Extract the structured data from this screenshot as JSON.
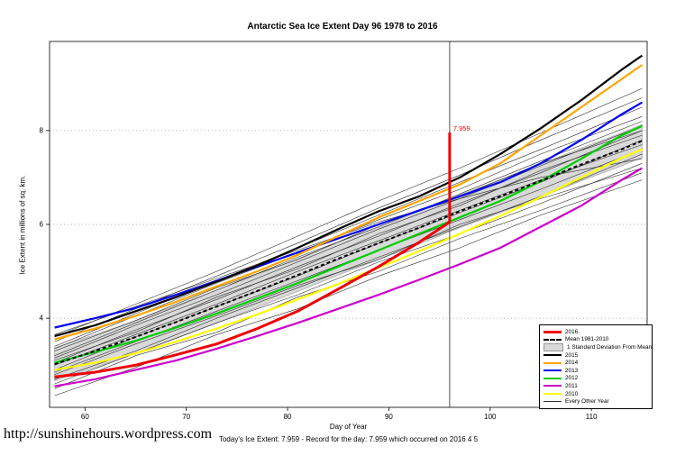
{
  "caption": "Today's Ice Extent: 7.959  - Record for the day: 7.959 which occurred on 2016 4 5",
  "url_text": "http://sunshinehours.wordpress.com",
  "chart_data": {
    "type": "line",
    "title": "Antarctic Sea Ice Extent Day 96 1978 to 2016",
    "xlabel": "Day of Year",
    "ylabel": "Ice Extent in millions of sq. km.",
    "xlim": [
      56.5,
      115.5
    ],
    "ylim": [
      2.1,
      9.9
    ],
    "xticks": [
      60,
      70,
      80,
      90,
      100,
      110
    ],
    "yticks": [
      4,
      6,
      8
    ],
    "vline_x": 96,
    "annotation": {
      "text": "7.959",
      "x": 96,
      "y": 7.959,
      "color": "#EE0000"
    },
    "band": {
      "label": "1 Standard Deviation From Mean",
      "mean_series": "Mean 1981-2010",
      "sd": 0.35,
      "color": "#D9D9D9"
    },
    "x_main": [
      57,
      61,
      65,
      69,
      73,
      77,
      81,
      85,
      89,
      93,
      97,
      101,
      105,
      109,
      113,
      115
    ],
    "series": [
      {
        "name": "2010",
        "color": "#FFFF00",
        "width": 2.2,
        "dash": null,
        "x": [
          57,
          61,
          65,
          69,
          73,
          77,
          81,
          85,
          89,
          93,
          97,
          101,
          105,
          109,
          113,
          115
        ],
        "values": [
          2.9,
          3.05,
          3.25,
          3.5,
          3.78,
          4.08,
          4.4,
          4.73,
          5.08,
          5.43,
          5.8,
          6.18,
          6.58,
          7.0,
          7.42,
          7.6
        ]
      },
      {
        "name": "2011",
        "color": "#CC00CC",
        "width": 2.2,
        "dash": null,
        "x": [
          57,
          61,
          65,
          69,
          73,
          77,
          81,
          85,
          89,
          93,
          97,
          101,
          105,
          109,
          113,
          115
        ],
        "values": [
          2.55,
          2.7,
          2.9,
          3.1,
          3.35,
          3.62,
          3.9,
          4.2,
          4.5,
          4.82,
          5.15,
          5.5,
          5.95,
          6.4,
          6.95,
          7.2
        ]
      },
      {
        "name": "2012",
        "color": "#00CC00",
        "width": 2.2,
        "dash": null,
        "x": [
          57,
          61,
          65,
          69,
          73,
          77,
          81,
          85,
          89,
          93,
          97,
          101,
          105,
          109,
          113,
          115
        ],
        "values": [
          3.05,
          3.28,
          3.52,
          3.8,
          4.1,
          4.42,
          4.75,
          5.1,
          5.45,
          5.8,
          6.15,
          6.5,
          6.92,
          7.4,
          7.9,
          8.1
        ]
      },
      {
        "name": "2013",
        "color": "#0000EE",
        "width": 2.2,
        "dash": null,
        "x": [
          57,
          61,
          65,
          69,
          73,
          77,
          81,
          85,
          89,
          93,
          97,
          101,
          105,
          109,
          113,
          115
        ],
        "values": [
          3.8,
          4.0,
          4.22,
          4.5,
          4.8,
          5.1,
          5.4,
          5.7,
          6.0,
          6.3,
          6.6,
          6.9,
          7.3,
          7.8,
          8.35,
          8.6
        ]
      },
      {
        "name": "2014",
        "color": "#FFA500",
        "width": 2.2,
        "dash": null,
        "x": [
          57,
          61,
          65,
          69,
          73,
          77,
          81,
          85,
          89,
          93,
          97,
          101,
          105,
          109,
          113,
          115
        ],
        "values": [
          3.55,
          3.78,
          4.05,
          4.35,
          4.68,
          5.0,
          5.35,
          5.75,
          6.15,
          6.5,
          6.85,
          7.3,
          7.9,
          8.5,
          9.1,
          9.4
        ]
      },
      {
        "name": "2015",
        "color": "#000000",
        "width": 2.2,
        "dash": null,
        "x": [
          57,
          61,
          65,
          69,
          73,
          77,
          81,
          85,
          89,
          93,
          97,
          101,
          105,
          109,
          113,
          115
        ],
        "values": [
          3.62,
          3.85,
          4.15,
          4.45,
          4.78,
          5.12,
          5.5,
          5.9,
          6.28,
          6.6,
          7.0,
          7.5,
          8.05,
          8.65,
          9.3,
          9.6
        ]
      },
      {
        "name": "Mean 1981-2010",
        "color": "#000000",
        "width": 2,
        "dash": "4 3",
        "x": [
          57,
          61,
          65,
          69,
          73,
          77,
          81,
          85,
          89,
          93,
          97,
          101,
          105,
          109,
          113,
          115
        ],
        "values": [
          3.02,
          3.3,
          3.6,
          3.92,
          4.25,
          4.58,
          4.92,
          5.27,
          5.6,
          5.93,
          6.28,
          6.6,
          6.93,
          7.28,
          7.6,
          7.78
        ]
      },
      {
        "name": "2016",
        "color": "#EE0000",
        "width": 3,
        "dash": null,
        "x": [
          57,
          61,
          65,
          69,
          73,
          77,
          81,
          85,
          89,
          93,
          96,
          96
        ],
        "values": [
          2.75,
          2.85,
          3.0,
          3.22,
          3.45,
          3.78,
          4.15,
          4.62,
          5.1,
          5.62,
          6.05,
          7.959
        ]
      }
    ],
    "other_years": {
      "label": "Every Other Year",
      "color": "#2b2b2b",
      "width": 0.6,
      "x": [
        57,
        65,
        73,
        81,
        89,
        97,
        105,
        115
      ],
      "lines": [
        [
          2.35,
          2.95,
          3.65,
          4.2,
          4.9,
          5.5,
          6.2,
          6.95
        ],
        [
          2.5,
          3.2,
          3.7,
          4.45,
          5.0,
          5.7,
          6.3,
          7.1
        ],
        [
          2.6,
          3.25,
          3.9,
          4.5,
          5.2,
          5.8,
          6.45,
          7.3
        ],
        [
          2.7,
          3.3,
          4.0,
          4.65,
          5.3,
          5.95,
          6.6,
          7.5
        ],
        [
          2.8,
          3.45,
          4.05,
          4.7,
          5.25,
          6.0,
          6.55,
          7.2
        ],
        [
          2.85,
          3.5,
          4.15,
          4.8,
          5.45,
          6.1,
          6.75,
          7.6
        ],
        [
          2.9,
          3.6,
          4.25,
          4.9,
          5.6,
          6.25,
          6.9,
          7.8
        ],
        [
          3.0,
          3.65,
          4.3,
          5.0,
          5.65,
          6.3,
          6.95,
          7.7
        ],
        [
          3.05,
          3.75,
          4.4,
          5.1,
          5.75,
          6.45,
          7.1,
          8.0
        ],
        [
          3.1,
          3.7,
          4.45,
          5.05,
          5.8,
          6.4,
          7.15,
          7.9
        ],
        [
          3.15,
          3.85,
          4.5,
          5.2,
          5.9,
          6.55,
          7.25,
          8.1
        ],
        [
          3.2,
          3.9,
          4.6,
          5.3,
          5.95,
          6.65,
          7.35,
          8.2
        ],
        [
          3.3,
          3.95,
          4.65,
          5.25,
          6.0,
          6.6,
          7.3,
          8.0
        ],
        [
          3.35,
          4.05,
          4.75,
          5.4,
          6.1,
          6.75,
          7.5,
          8.3
        ],
        [
          3.4,
          4.1,
          4.8,
          5.5,
          6.2,
          6.9,
          7.6,
          8.5
        ],
        [
          3.5,
          4.2,
          4.9,
          5.6,
          6.35,
          7.05,
          7.8,
          8.7
        ],
        [
          3.6,
          4.3,
          5.0,
          5.75,
          6.5,
          7.2,
          7.95,
          8.9
        ],
        [
          3.65,
          4.25,
          4.85,
          5.45,
          6.05,
          6.55,
          7.0,
          7.4
        ]
      ]
    },
    "legend": [
      {
        "label": "2016",
        "type": "line",
        "color": "#EE0000",
        "thickness": 3
      },
      {
        "label": "Mean 1981-2010",
        "type": "dash",
        "color": "#000000",
        "thickness": 2
      },
      {
        "label": "1 Standard Deviation From Mean",
        "type": "box",
        "color": "#D9D9D9"
      },
      {
        "label": "2015",
        "type": "line",
        "color": "#000000",
        "thickness": 2
      },
      {
        "label": "2014",
        "type": "line",
        "color": "#FFA500",
        "thickness": 2
      },
      {
        "label": "2013",
        "type": "line",
        "color": "#0000EE",
        "thickness": 2
      },
      {
        "label": "2012",
        "type": "line",
        "color": "#00CC00",
        "thickness": 2
      },
      {
        "label": "2011",
        "type": "line",
        "color": "#CC00CC",
        "thickness": 2
      },
      {
        "label": "2010",
        "type": "line",
        "color": "#FFFF00",
        "thickness": 2
      },
      {
        "label": "Every Other Year",
        "type": "thin",
        "color": "#333333",
        "thickness": 1
      }
    ],
    "legend_position": "bottom-right",
    "grid": "horizontal-dotted"
  }
}
